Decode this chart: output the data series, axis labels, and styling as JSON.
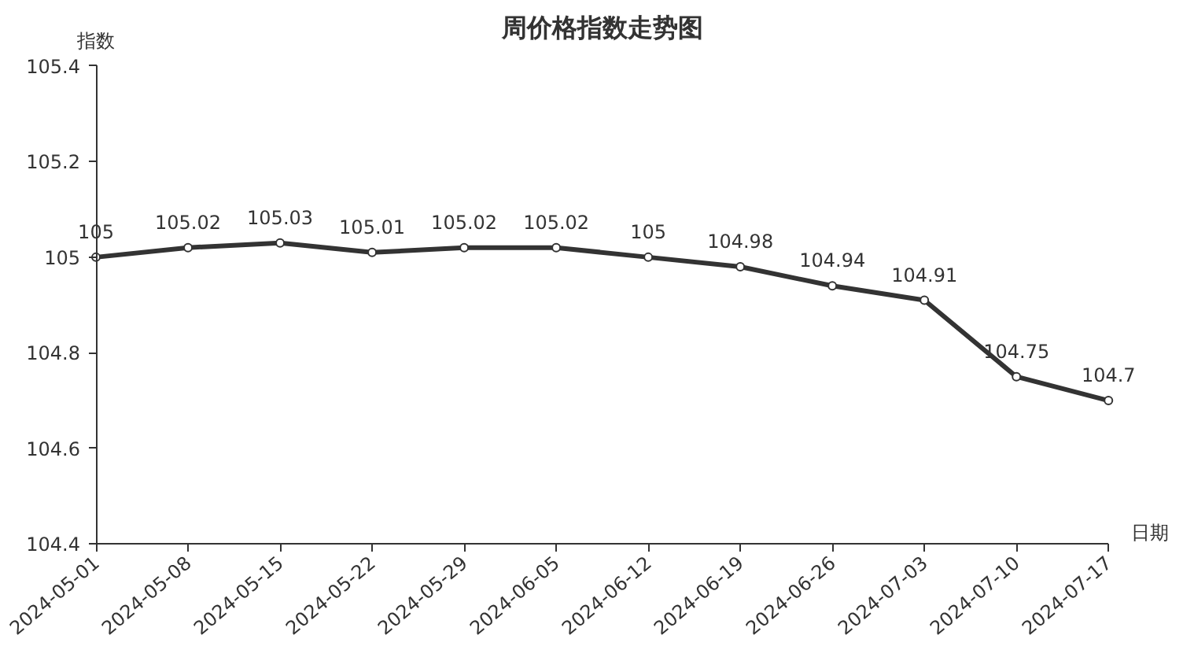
{
  "chart_data": {
    "type": "line",
    "title": "周价格指数走势图",
    "xlabel": "日期",
    "ylabel": "指数",
    "categories": [
      "2024-05-01",
      "2024-05-08",
      "2024-05-15",
      "2024-05-22",
      "2024-05-29",
      "2024-06-05",
      "2024-06-12",
      "2024-06-19",
      "2024-06-26",
      "2024-07-03",
      "2024-07-10",
      "2024-07-17"
    ],
    "series": [
      {
        "color": "#333333",
        "values": [
          105,
          105.02,
          105.03,
          105.01,
          105.02,
          105.02,
          105,
          104.98,
          104.94,
          104.91,
          104.75,
          104.7
        ]
      }
    ],
    "ylim": [
      104.4,
      105.4
    ],
    "yticks": [
      104.4,
      104.6,
      104.8,
      105,
      105.2,
      105.4
    ],
    "data_labels": true,
    "marker": "circle",
    "line_style": "solid",
    "grid": false
  }
}
